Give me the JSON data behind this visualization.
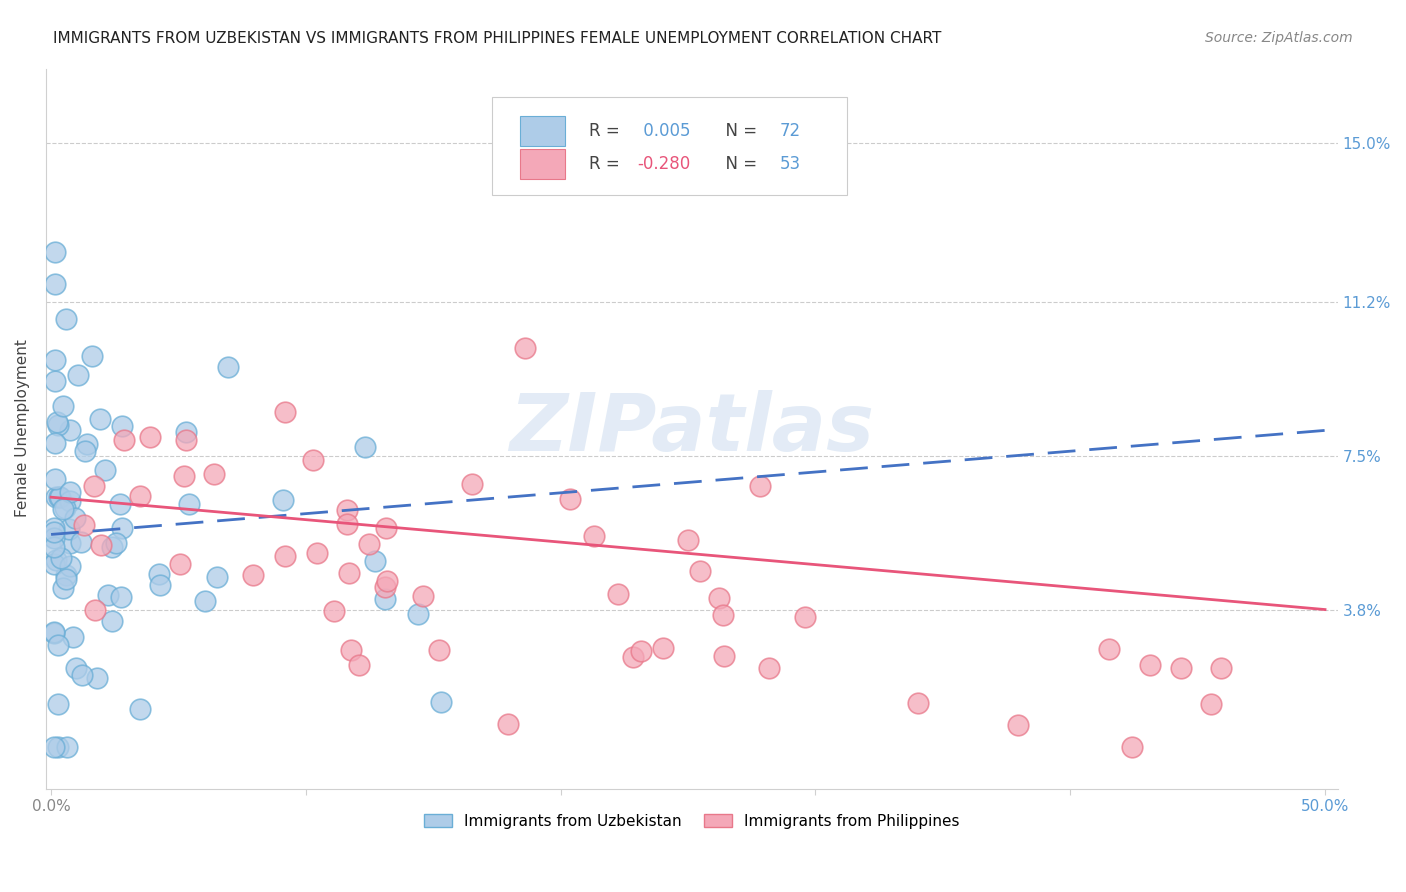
{
  "title": "IMMIGRANTS FROM UZBEKISTAN VS IMMIGRANTS FROM PHILIPPINES FEMALE UNEMPLOYMENT CORRELATION CHART",
  "source": "Source: ZipAtlas.com",
  "ylabel": "Female Unemployment",
  "ytick_labels": [
    "15.0%",
    "11.2%",
    "7.5%",
    "3.8%"
  ],
  "ytick_values": [
    0.15,
    0.112,
    0.075,
    0.038
  ],
  "ylim": [
    -0.005,
    0.168
  ],
  "xlim": [
    -0.002,
    0.505
  ],
  "legend_r1_prefix": "R = ",
  "legend_r1_value": " 0.005",
  "legend_n1_prefix": "N = ",
  "legend_n1_value": "72",
  "legend_r2_prefix": "R = ",
  "legend_r2_value": "-0.280",
  "legend_n2_prefix": "N = ",
  "legend_n2_value": "53",
  "color_uzbekistan_fill": "#aecce8",
  "color_uzbekistan_edge": "#6aaed6",
  "color_philippines_fill": "#f4a8b8",
  "color_philippines_edge": "#e8788a",
  "color_uzbekistan_line": "#4472c4",
  "color_philippines_line": "#e8557a",
  "color_right_axis": "#5b9bd5",
  "color_legend_r1": "#5b9bd5",
  "color_legend_r2": "#e8557a",
  "color_legend_n": "#5b9bd5",
  "background_color": "#ffffff",
  "watermark_color": "#ccdcef",
  "title_fontsize": 11,
  "source_fontsize": 10,
  "axis_label_fontsize": 11,
  "tick_label_fontsize": 11
}
